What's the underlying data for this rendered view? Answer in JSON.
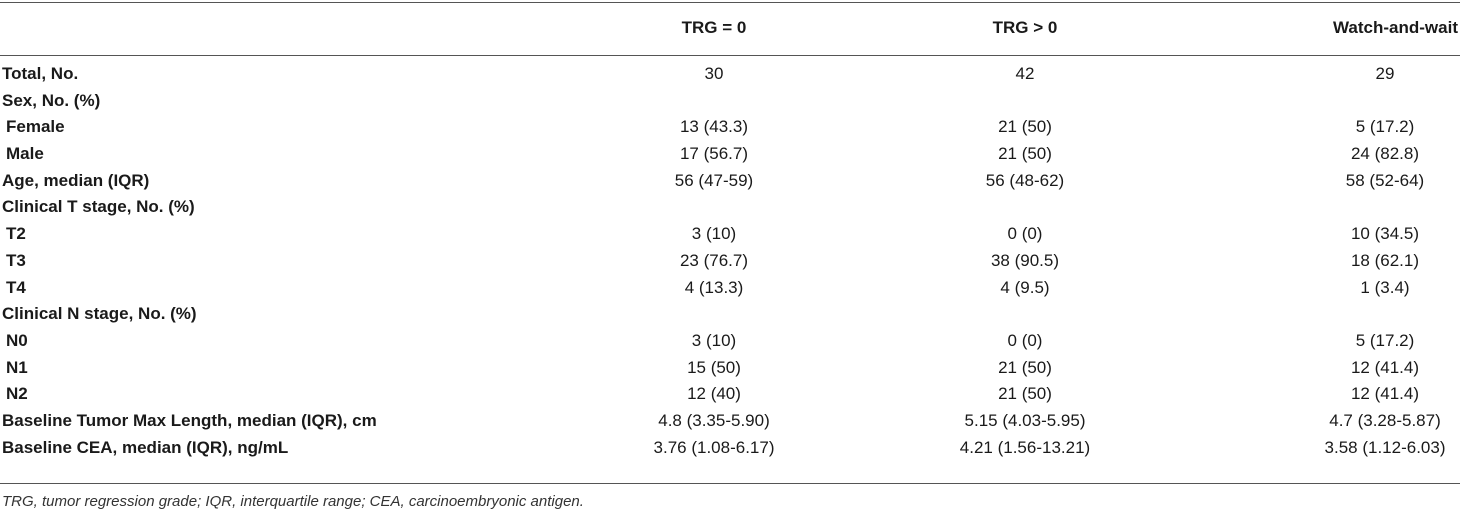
{
  "table": {
    "headers": [
      "",
      "TRG = 0",
      "TRG > 0",
      "Watch-and-wait"
    ],
    "rows": [
      {
        "label": "Total, No.",
        "sub": false,
        "values": [
          "30",
          "42",
          "29"
        ]
      },
      {
        "label": "Sex, No. (%)",
        "sub": false,
        "values": [
          "",
          "",
          ""
        ]
      },
      {
        "label": "Female",
        "sub": true,
        "values": [
          "13 (43.3)",
          "21 (50)",
          "5 (17.2)"
        ]
      },
      {
        "label": "Male",
        "sub": true,
        "values": [
          "17 (56.7)",
          "21 (50)",
          "24 (82.8)"
        ]
      },
      {
        "label": "Age, median (IQR)",
        "sub": false,
        "values": [
          "56 (47-59)",
          "56 (48-62)",
          "58 (52-64)"
        ]
      },
      {
        "label": "Clinical T stage, No. (%)",
        "sub": false,
        "values": [
          "",
          "",
          ""
        ]
      },
      {
        "label": "T2",
        "sub": true,
        "values": [
          "3 (10)",
          "0 (0)",
          "10 (34.5)"
        ]
      },
      {
        "label": "T3",
        "sub": true,
        "values": [
          "23 (76.7)",
          "38 (90.5)",
          "18 (62.1)"
        ]
      },
      {
        "label": "T4",
        "sub": true,
        "values": [
          "4 (13.3)",
          "4 (9.5)",
          "1 (3.4)"
        ]
      },
      {
        "label": "Clinical N stage, No. (%)",
        "sub": false,
        "values": [
          "",
          "",
          ""
        ]
      },
      {
        "label": "N0",
        "sub": true,
        "values": [
          "3 (10)",
          "0 (0)",
          "5 (17.2)"
        ]
      },
      {
        "label": "N1",
        "sub": true,
        "values": [
          "15 (50)",
          "21 (50)",
          "12 (41.4)"
        ]
      },
      {
        "label": "N2",
        "sub": true,
        "values": [
          "12 (40)",
          "21 (50)",
          "12 (41.4)"
        ]
      },
      {
        "label": "Baseline Tumor Max Length, median (IQR), cm",
        "sub": false,
        "values": [
          "4.8 (3.35-5.90)",
          "5.15 (4.03-5.95)",
          "4.7 (3.28-5.87)"
        ]
      },
      {
        "label": "Baseline CEA, median (IQR), ng/mL",
        "sub": false,
        "values": [
          "3.76 (1.08-6.17)",
          "4.21 (1.56-13.21)",
          "3.58 (1.12-6.03)"
        ]
      }
    ],
    "footnote": "TRG, tumor regression grade; IQR, interquartile range; CEA, carcinoembryonic antigen."
  }
}
